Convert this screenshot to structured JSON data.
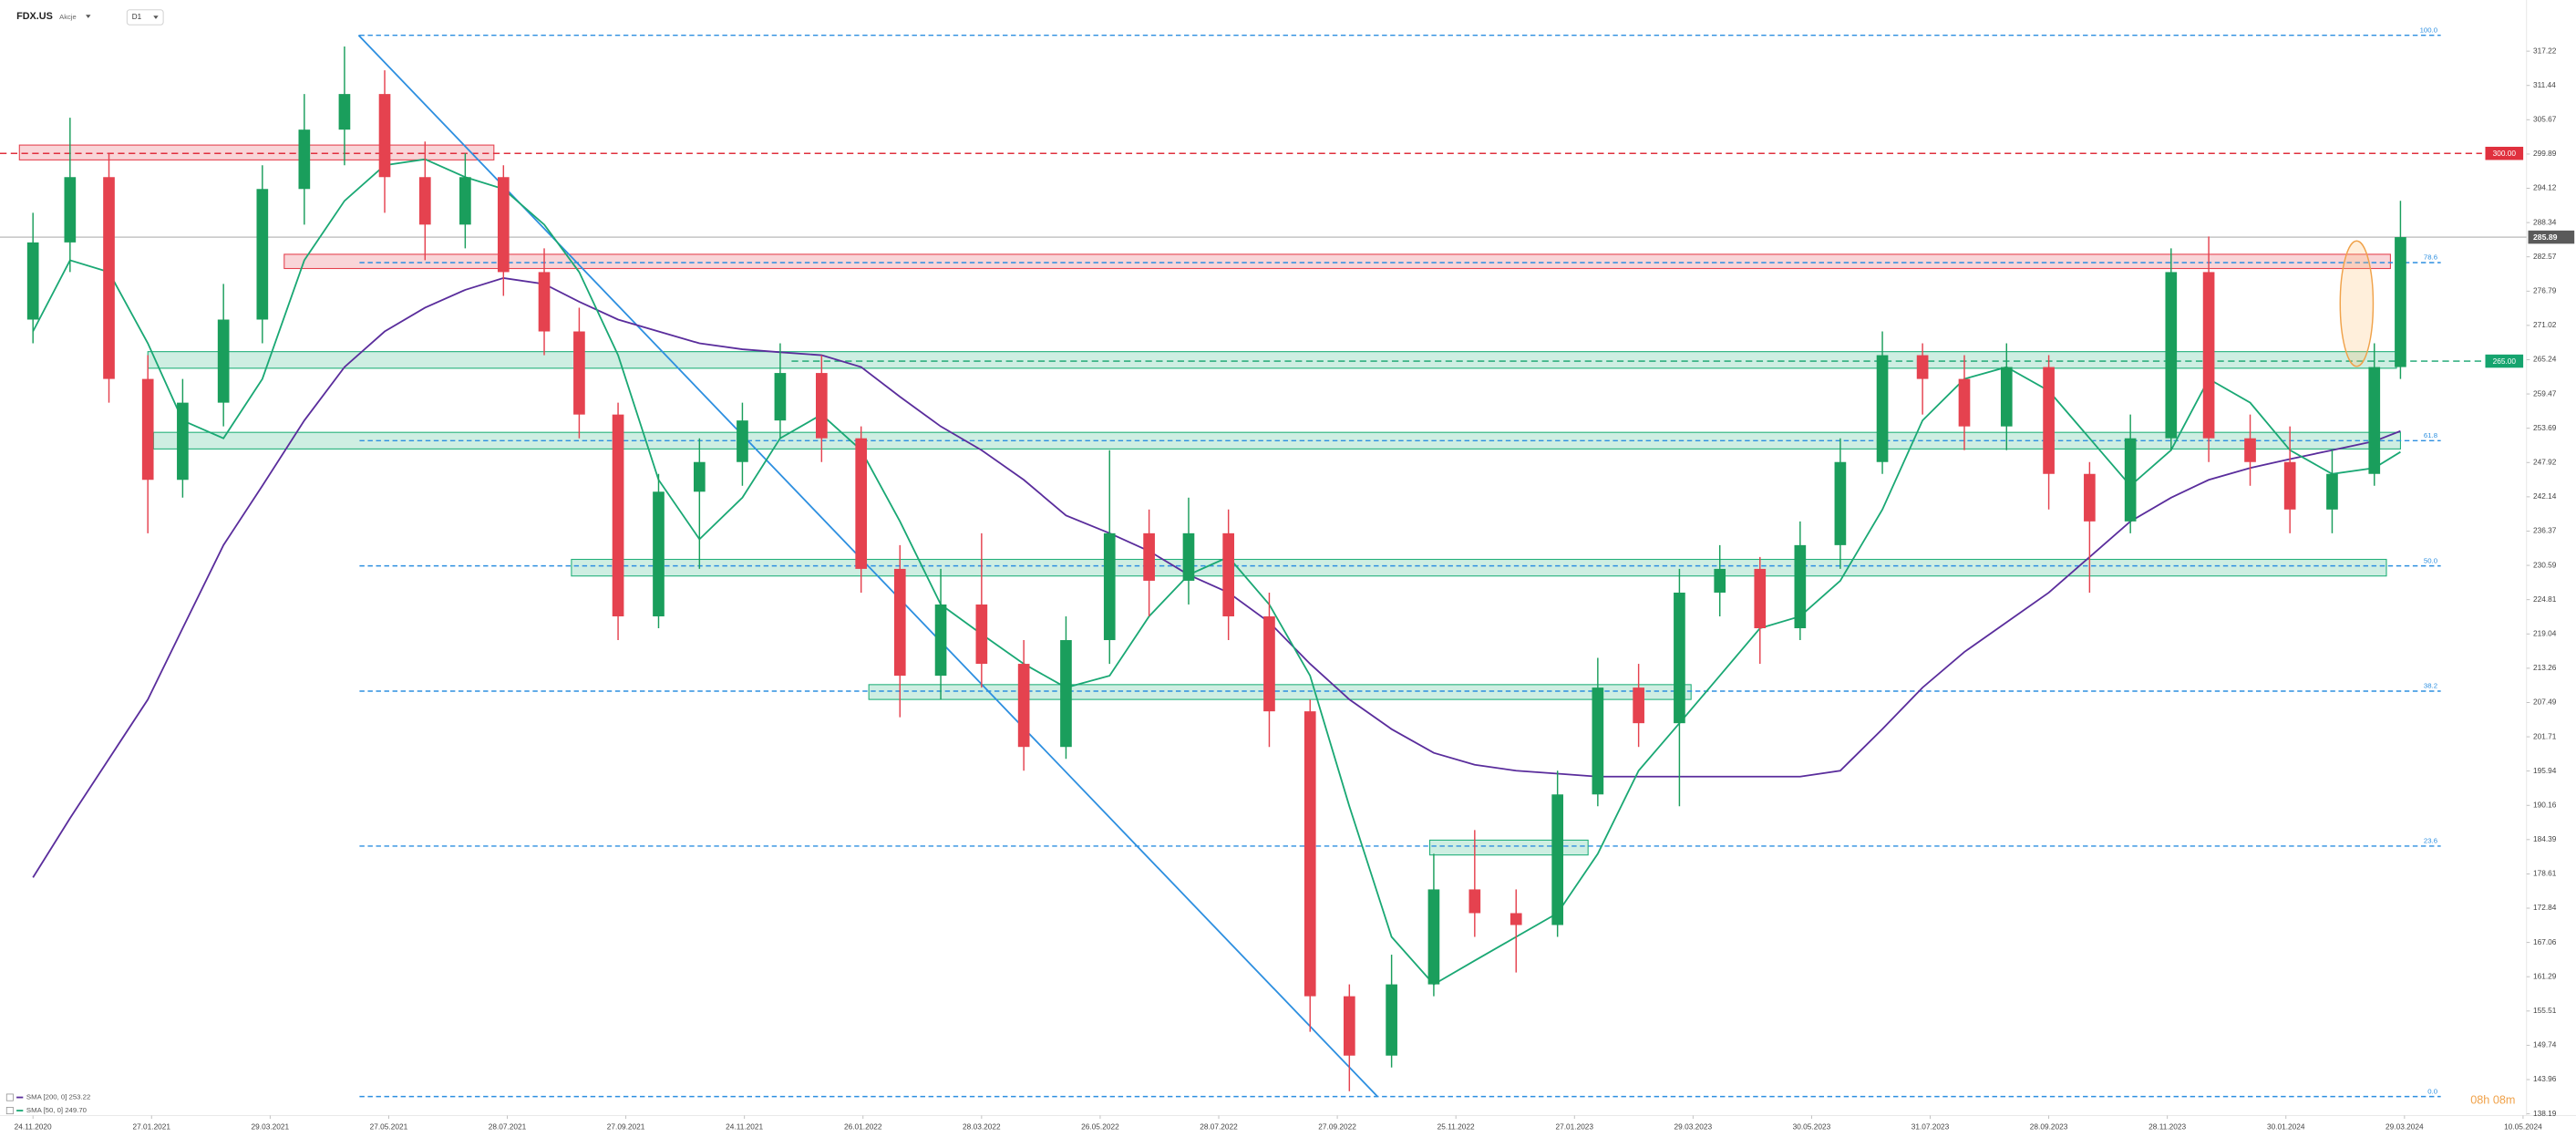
{
  "header": {
    "symbol": "FDX.US",
    "market": "Akcje",
    "interval": "D1"
  },
  "countdown": "08h 08m",
  "chart_data": {
    "type": "candlestick",
    "x": [
      "24.11.2020",
      "14.12.2020",
      "04.01.2021",
      "25.01.2021",
      "12.02.2021",
      "05.03.2021",
      "25.03.2021",
      "15.04.2021",
      "05.05.2021",
      "25.05.2021",
      "15.06.2021",
      "06.07.2021",
      "26.07.2021",
      "16.08.2021",
      "03.09.2021",
      "23.09.2021",
      "13.10.2021",
      "02.11.2021",
      "23.11.2021",
      "13.12.2021",
      "04.01.2022",
      "25.01.2022",
      "14.02.2022",
      "07.03.2022",
      "28.03.2022",
      "18.04.2022",
      "09.05.2022",
      "31.05.2022",
      "21.06.2022",
      "12.07.2022",
      "02.08.2022",
      "23.08.2022",
      "13.09.2022",
      "03.10.2022",
      "24.10.2022",
      "14.11.2022",
      "05.12.2022",
      "27.12.2022",
      "18.01.2023",
      "08.02.2023",
      "01.03.2023",
      "22.03.2023",
      "12.04.2023",
      "03.05.2023",
      "24.05.2023",
      "14.06.2023",
      "06.07.2023",
      "27.07.2023",
      "17.08.2023",
      "07.09.2023",
      "28.09.2023",
      "19.10.2023",
      "09.11.2023",
      "30.11.2023",
      "20.12.2023",
      "11.01.2024",
      "01.02.2024",
      "22.02.2024",
      "14.03.2024",
      "27.03.2024"
    ],
    "open": [
      272,
      285,
      296,
      262,
      245,
      258,
      272,
      294,
      304,
      310,
      296,
      288,
      296,
      280,
      270,
      256,
      222,
      243,
      248,
      255,
      263,
      252,
      230,
      212,
      224,
      214,
      200,
      218,
      236,
      228,
      236,
      222,
      206,
      158,
      148,
      160,
      176,
      172,
      170,
      192,
      210,
      204,
      226,
      230,
      220,
      234,
      248,
      266,
      262,
      254,
      264,
      246,
      238,
      252,
      280,
      252,
      248,
      240,
      246,
      264
    ],
    "high": [
      290,
      306,
      300,
      266,
      262,
      278,
      298,
      310,
      318,
      314,
      302,
      300,
      298,
      284,
      274,
      258,
      246,
      252,
      258,
      268,
      266,
      254,
      234,
      230,
      236,
      218,
      222,
      250,
      240,
      242,
      240,
      226,
      208,
      160,
      165,
      182,
      186,
      176,
      196,
      215,
      214,
      230,
      234,
      232,
      238,
      252,
      270,
      268,
      266,
      268,
      266,
      248,
      256,
      284,
      286,
      256,
      254,
      250,
      268,
      292
    ],
    "low": [
      268,
      280,
      258,
      236,
      242,
      254,
      268,
      288,
      298,
      290,
      282,
      284,
      276,
      266,
      252,
      218,
      220,
      230,
      244,
      252,
      248,
      226,
      205,
      208,
      210,
      196,
      198,
      214,
      222,
      224,
      218,
      200,
      152,
      142,
      146,
      158,
      168,
      162,
      168,
      190,
      200,
      190,
      222,
      214,
      218,
      230,
      246,
      256,
      250,
      250,
      240,
      226,
      236,
      250,
      248,
      244,
      236,
      236,
      244,
      262
    ],
    "close": [
      285,
      296,
      262,
      245,
      258,
      272,
      294,
      304,
      310,
      296,
      288,
      296,
      280,
      270,
      256,
      222,
      243,
      248,
      255,
      263,
      252,
      230,
      212,
      224,
      214,
      200,
      218,
      236,
      228,
      236,
      222,
      206,
      158,
      148,
      160,
      176,
      172,
      170,
      192,
      210,
      204,
      226,
      230,
      220,
      234,
      248,
      266,
      262,
      254,
      264,
      246,
      238,
      252,
      280,
      252,
      248,
      240,
      246,
      264,
      285.89
    ],
    "up_color": "#1a9e5c",
    "down_color": "#e5424f",
    "series": [
      {
        "name": "SMA [200, 0] 253.22",
        "color": "#5a2d9c",
        "values": [
          178,
          188,
          198,
          208,
          220,
          234,
          244,
          255,
          264,
          270,
          274,
          277,
          279,
          278,
          275,
          272,
          270,
          268,
          267,
          266.5,
          266,
          264,
          259,
          254,
          250,
          245,
          239,
          236,
          233,
          229,
          226,
          221,
          214,
          208,
          203,
          199,
          197,
          196,
          195.5,
          195,
          195,
          195,
          195,
          195,
          195,
          196,
          203,
          210,
          216,
          221,
          226,
          232,
          238,
          242,
          245,
          247,
          248.5,
          250,
          251.5,
          253.22
        ]
      },
      {
        "name": "SMA [50, 0] 249.70",
        "color": "#1aa874",
        "values": [
          270,
          282,
          280,
          268,
          255,
          252,
          262,
          282,
          292,
          298,
          299,
          296,
          294,
          288,
          280,
          266,
          245,
          235,
          242,
          252,
          256,
          250,
          238,
          224,
          219,
          214,
          210,
          212,
          222,
          229,
          232,
          224,
          212,
          190,
          168,
          160,
          164,
          168,
          172,
          182,
          196,
          204,
          212,
          220,
          222,
          228,
          240,
          255,
          262,
          264,
          260,
          252,
          244,
          250,
          262,
          258,
          250,
          246,
          247,
          249.7
        ]
      }
    ],
    "xlim": [
      "07.11.2020",
      "13.05.2024"
    ],
    "xticks": [
      "24.11.2020",
      "27.01.2021",
      "29.03.2021",
      "27.05.2021",
      "28.07.2021",
      "27.09.2021",
      "24.11.2021",
      "26.01.2022",
      "28.03.2022",
      "26.05.2022",
      "28.07.2022",
      "27.09.2022",
      "25.11.2022",
      "27.01.2023",
      "29.03.2023",
      "30.05.2023",
      "31.07.2023",
      "28.09.2023",
      "28.11.2023",
      "30.01.2024",
      "29.03.2024",
      "10.05.2024"
    ],
    "ylim": [
      137.9,
      325.84
    ],
    "yticks": [
      317.22,
      311.44,
      305.67,
      299.89,
      294.12,
      288.34,
      282.57,
      276.79,
      271.02,
      265.24,
      259.47,
      253.69,
      247.92,
      242.14,
      236.37,
      230.59,
      224.81,
      219.04,
      213.26,
      207.49,
      201.71,
      195.94,
      190.16,
      184.39,
      178.61,
      172.84,
      167.06,
      161.29,
      155.51,
      149.74,
      143.96,
      138.19
    ],
    "grid": false,
    "fib_levels": [
      {
        "label": "100.0",
        "value": 319.9
      },
      {
        "label": "78.6",
        "value": 281.6
      },
      {
        "label": "61.8",
        "value": 251.6
      },
      {
        "label": "50.0",
        "value": 230.5
      },
      {
        "label": "38.2",
        "value": 209.4
      },
      {
        "label": "23.6",
        "value": 183.3
      },
      {
        "label": "0.0",
        "value": 141.1
      }
    ],
    "fib_color": "#2d8fe0",
    "hlines": [
      {
        "value": 300,
        "label": "300.00",
        "color": "#e0303e"
      },
      {
        "value": 265,
        "label": "265.00",
        "color": "#15a46e"
      }
    ],
    "last_price": {
      "value": 285.89,
      "label": "285.89",
      "color": "#5a5a5a"
    },
    "zones": [
      {
        "from": "17.11.2020",
        "to": "21.07.2021",
        "low": 298.9,
        "high": 301.4,
        "color": "#e5424f"
      },
      {
        "from": "05.04.2021",
        "to": "22.03.2024",
        "low": 280.6,
        "high": 283.0,
        "color": "#e5424f"
      },
      {
        "from": "25.01.2021",
        "to": "25.03.2024",
        "low": 263.8,
        "high": 266.6,
        "color": "#22b07a"
      },
      {
        "from": "28.01.2021",
        "to": "27.03.2024",
        "low": 250.2,
        "high": 253.0,
        "color": "#22b07a"
      },
      {
        "from": "30.08.2021",
        "to": "20.03.2024",
        "low": 228.8,
        "high": 231.6,
        "color": "#22b07a"
      },
      {
        "from": "29.01.2022",
        "to": "28.03.2023",
        "low": 208.0,
        "high": 210.5,
        "color": "#22b07a"
      },
      {
        "from": "12.11.2022",
        "to": "03.02.2023",
        "low": 181.8,
        "high": 184.3,
        "color": "#22b07a"
      }
    ],
    "trendline": {
      "x": [
        "12.05.2021",
        "17.10.2022"
      ],
      "values": [
        319.9,
        141.1
      ],
      "color": "#2d8fe0"
    }
  }
}
